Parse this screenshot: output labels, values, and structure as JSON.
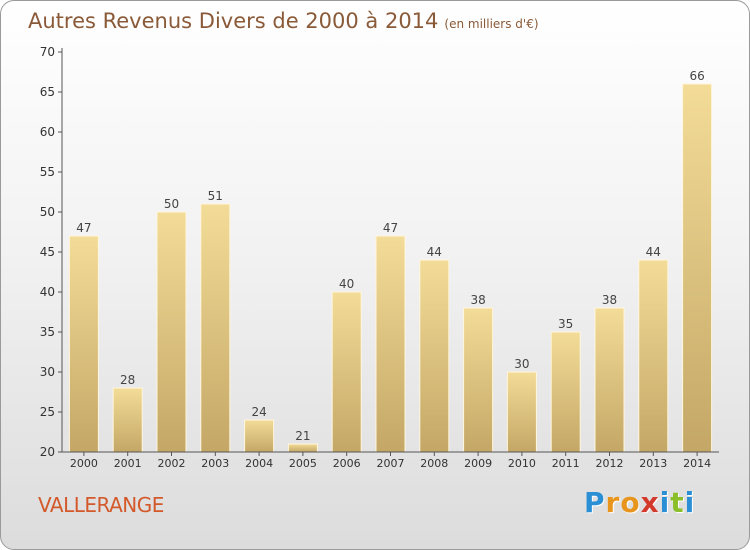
{
  "header": {
    "title": "Autres Revenus Divers de 2000 à 2014",
    "subtitle": "(en milliers d'€)"
  },
  "footer": {
    "commune": "VALLERANGE",
    "brand": "Proxiti"
  },
  "colors": {
    "title": "#8a5a38",
    "commune": "#d3592a",
    "bar_top": "#f3dc98",
    "bar_bottom": "#c4a766",
    "brand_letters": [
      "#2a8fd4",
      "#e8951e",
      "#e8951e",
      "#d33a2c",
      "#2a8fd4",
      "#8bbf2a",
      "#2a8fd4"
    ]
  },
  "chart_data": {
    "type": "bar",
    "categories": [
      "2000",
      "2001",
      "2002",
      "2003",
      "2004",
      "2005",
      "2006",
      "2007",
      "2008",
      "2009",
      "2010",
      "2011",
      "2012",
      "2013",
      "2014"
    ],
    "values": [
      47,
      28,
      50,
      51,
      24,
      21,
      40,
      47,
      44,
      38,
      30,
      35,
      38,
      44,
      66
    ],
    "ylim": [
      20,
      70
    ],
    "yticks": [
      20,
      25,
      30,
      35,
      40,
      45,
      50,
      55,
      60,
      65,
      70
    ],
    "grid": false,
    "data_labels": true
  }
}
